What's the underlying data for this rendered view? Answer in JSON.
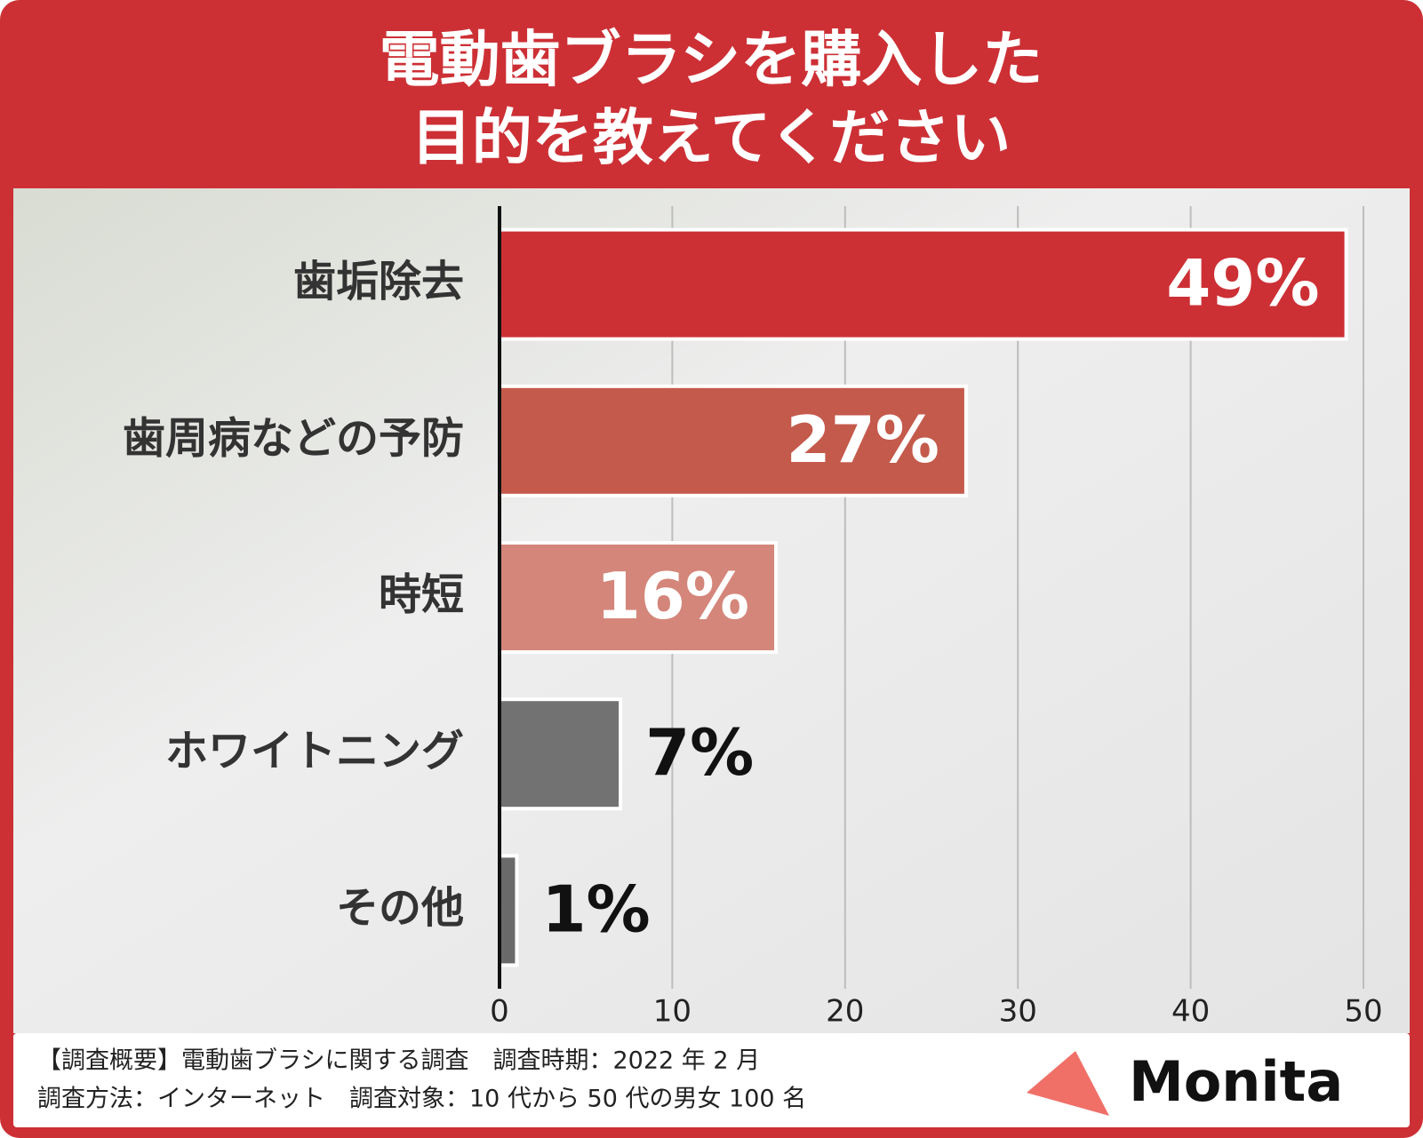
{
  "chart_data": {
    "type": "hbar",
    "title": [
      "電動歯ブラシを購入した",
      "目的を教えてください"
    ],
    "categories": [
      "歯垢除去",
      "歯周病などの予防",
      "時短",
      "ホワイトニング",
      "その他"
    ],
    "values": [
      49,
      27,
      16,
      7,
      1
    ],
    "value_labels": [
      "49%",
      "27%",
      "16%",
      "7%",
      "1%"
    ],
    "colors": [
      "#cc3035",
      "#c45a4b",
      "#d4867a",
      "#727272",
      "#6a6a6a"
    ],
    "xlim": [
      0,
      50
    ],
    "xticks": [
      0,
      10,
      20,
      30,
      40,
      50
    ],
    "grid": true,
    "footnotes": [
      "【調査概要】電動歯ブラシに関する調査　調査時期：2022 年 2 月",
      "調査方法：インターネット　調査対象：10 代から 50 代の男女 100 名"
    ],
    "brand": "Monita"
  }
}
